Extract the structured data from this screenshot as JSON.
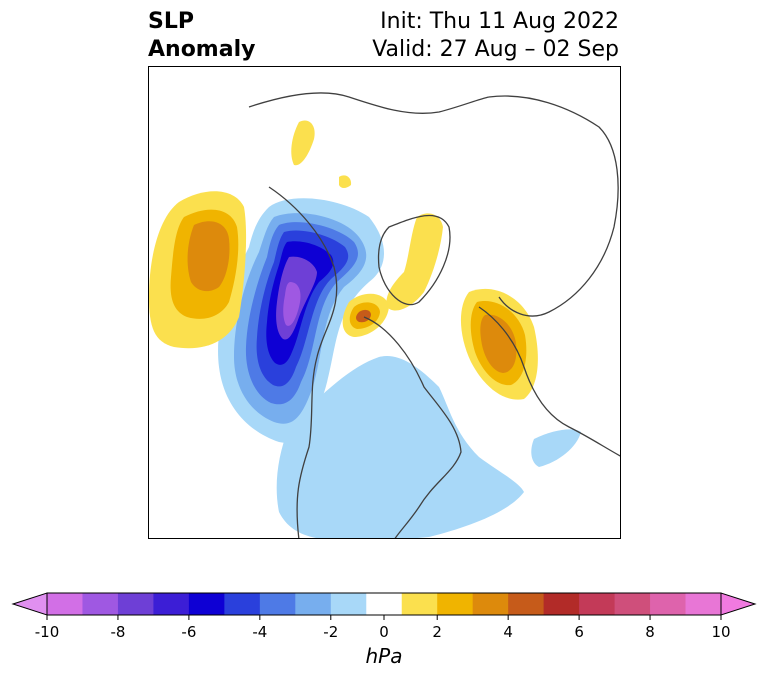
{
  "header": {
    "title_line1": "SLP",
    "title_line2": "Anomaly",
    "init": "Init: Thu 11 Aug 2022",
    "valid": "Valid: 27 Aug – 02 Sep"
  },
  "colorbar": {
    "unit": "hPa",
    "bounds": [
      -10,
      -9,
      -8,
      -7,
      -6,
      -5,
      -4,
      -3,
      -2,
      -1,
      1,
      2,
      3,
      4,
      5,
      6,
      7,
      8,
      9,
      10
    ],
    "tick_labels": [
      "-10",
      "-8",
      "-6",
      "-4",
      "-2",
      "0",
      "2",
      "4",
      "6",
      "8",
      "10"
    ],
    "colors": [
      "#d26fe6",
      "#9f58e2",
      "#6e3fd6",
      "#3c1ed6",
      "#0e00d4",
      "#2a40dc",
      "#4e7ae6",
      "#77aeee",
      "#a8d8f8",
      "#ffffff",
      "#fbe04e",
      "#f0b400",
      "#dd8a0c",
      "#c65b1a",
      "#b22b28",
      "#c33a58",
      "#cf4f7b",
      "#de63ac",
      "#e876d6"
    ],
    "under_color": "#e090f0",
    "over_color": "#f07ae0"
  },
  "map": {
    "colors": {
      "low1": "#a8d8f8",
      "low2": "#77aeee",
      "low3": "#4e7ae6",
      "low4": "#2a40dc",
      "low5": "#0e00d4",
      "low6": "#3c1ed6",
      "low7": "#6e3fd6",
      "low8": "#9f58e2",
      "high1": "#fbe04e",
      "high2": "#f0b400",
      "high3": "#dd8a0c",
      "high4": "#c65b1a",
      "coast": "#404040"
    }
  }
}
